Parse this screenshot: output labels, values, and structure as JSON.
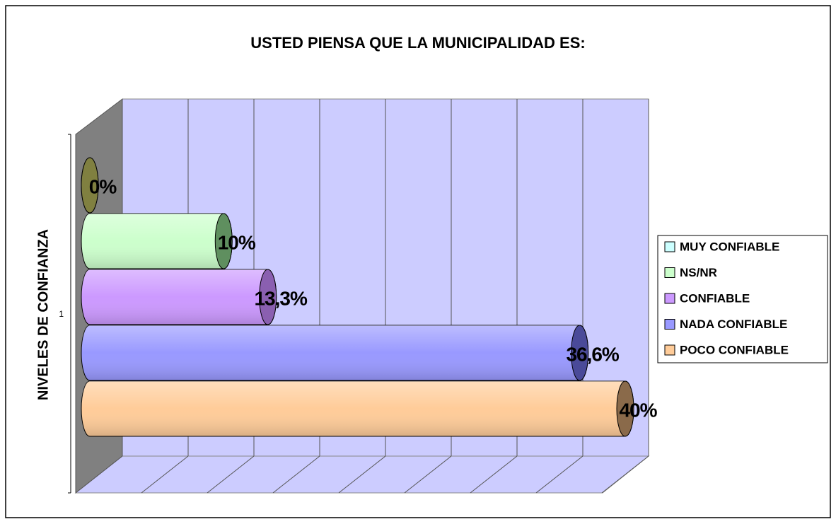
{
  "chart_data": {
    "type": "bar",
    "title": "USTED PIENSA QUE LA MUNICIPALIDAD ES:",
    "y_label": "NIVELES DE CONFIANZA",
    "categories": [
      "1"
    ],
    "orientation": "horizontal",
    "xlim": [
      0,
      40
    ],
    "xticks": [
      0,
      5,
      10,
      15,
      20,
      25,
      30,
      35,
      40
    ],
    "grid": true,
    "legend": "right",
    "series": [
      {
        "name": "MUY CONFIABLE",
        "color": "#ccffff",
        "edge_color": "#808040",
        "values": [
          0
        ],
        "value_labels": [
          "0%"
        ]
      },
      {
        "name": "NS/NR",
        "color": "#ccffcc",
        "edge_color": "#5f8f5f",
        "values": [
          10
        ],
        "value_labels": [
          "10%"
        ]
      },
      {
        "name": "CONFIABLE",
        "color": "#cc99ff",
        "edge_color": "#8a5fb0",
        "values": [
          13.3
        ],
        "value_labels": [
          "13,3%"
        ]
      },
      {
        "name": "NADA CONFIABLE",
        "color": "#9999ff",
        "edge_color": "#4a4a99",
        "values": [
          36.6
        ],
        "value_labels": [
          "36,6%"
        ]
      },
      {
        "name": "POCO CONFIABLE",
        "color": "#ffcc99",
        "edge_color": "#8a6a4a",
        "values": [
          40
        ],
        "value_labels": [
          "40%"
        ]
      }
    ]
  }
}
